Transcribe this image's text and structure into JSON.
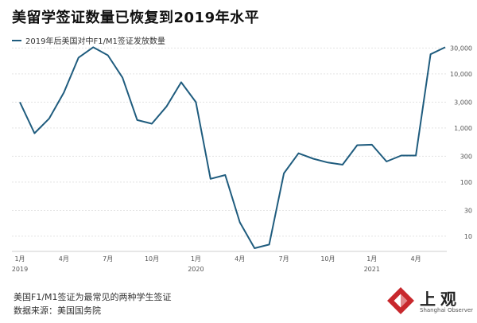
{
  "title": "美留学签证数量已恢复到2019年水平",
  "legend": {
    "label": "2019年后美国对中F1/M1签证发放数量",
    "color": "#1f5c7e"
  },
  "footer": {
    "note": "美国F1/M1签证为最常见的两种学生签证",
    "source": "数据来源：美国国务院"
  },
  "logo": {
    "text": "上观",
    "subtitle": "Shanghai Observer"
  },
  "chart_data": {
    "type": "line",
    "x": [
      "2019-01",
      "2019-02",
      "2019-03",
      "2019-04",
      "2019-05",
      "2019-06",
      "2019-07",
      "2019-08",
      "2019-09",
      "2019-10",
      "2019-11",
      "2019-12",
      "2020-01",
      "2020-02",
      "2020-03",
      "2020-04",
      "2020-05",
      "2020-06",
      "2020-07",
      "2020-08",
      "2020-09",
      "2020-10",
      "2020-11",
      "2020-12",
      "2021-01",
      "2021-02",
      "2021-03",
      "2021-04",
      "2021-05",
      "2021-06"
    ],
    "series": [
      {
        "name": "2019年后美国对中F1/M1签证发放数量",
        "values": [
          3000,
          800,
          1500,
          4500,
          20000,
          31000,
          22000,
          8500,
          1400,
          1200,
          2500,
          7000,
          3000,
          115,
          135,
          18,
          6,
          7,
          145,
          340,
          270,
          230,
          210,
          480,
          490,
          240,
          310,
          310,
          23000,
          31000
        ]
      }
    ],
    "y_scale": "log",
    "ylim": [
      6,
      36000
    ],
    "yticks": [
      10,
      30,
      100,
      300,
      1000,
      3000,
      10000,
      30000
    ],
    "ytick_labels": [
      "10",
      "30",
      "100",
      "300",
      "1,000",
      "3,000",
      "10,000",
      "30,000"
    ],
    "xticks": [
      {
        "month": "1月",
        "year": "2019"
      },
      {
        "month": "4月",
        "year": ""
      },
      {
        "month": "7月",
        "year": ""
      },
      {
        "month": "10月",
        "year": ""
      },
      {
        "month": "1月",
        "year": "2020"
      },
      {
        "month": "4月",
        "year": ""
      },
      {
        "month": "7月",
        "year": ""
      },
      {
        "month": "10月",
        "year": ""
      },
      {
        "month": "1月",
        "year": "2021"
      },
      {
        "month": "4月",
        "year": ""
      }
    ],
    "grid": true,
    "legend_position": "top-left"
  }
}
